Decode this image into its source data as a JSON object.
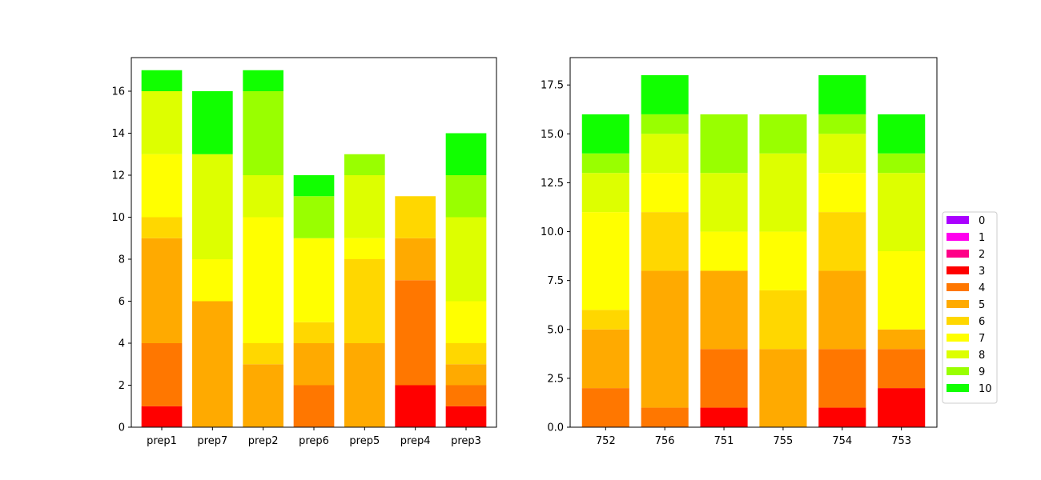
{
  "legend": {
    "placement": "right",
    "entries": [
      {
        "label": "0",
        "color": "#aa00ff"
      },
      {
        "label": "1",
        "color": "#ff00ee"
      },
      {
        "label": "2",
        "color": "#ff0088"
      },
      {
        "label": "3",
        "color": "#ff0000"
      },
      {
        "label": "4",
        "color": "#ff7700"
      },
      {
        "label": "5",
        "color": "#ffaa00"
      },
      {
        "label": "6",
        "color": "#ffd700"
      },
      {
        "label": "7",
        "color": "#ffff00"
      },
      {
        "label": "8",
        "color": "#ddff00"
      },
      {
        "label": "9",
        "color": "#99ff00"
      },
      {
        "label": "10",
        "color": "#11ff00"
      }
    ]
  },
  "chart_data": [
    {
      "type": "bar",
      "stacked": true,
      "categories": [
        "prep1",
        "prep7",
        "prep2",
        "prep6",
        "prep5",
        "prep4",
        "prep3"
      ],
      "ylim": [
        0,
        17.6
      ],
      "yticks": [
        0,
        2,
        4,
        6,
        8,
        10,
        12,
        14,
        16
      ],
      "ytick_labels": [
        "0",
        "2",
        "4",
        "6",
        "8",
        "10",
        "12",
        "14",
        "16"
      ],
      "series": [
        {
          "name": "0",
          "values": [
            0,
            0,
            0,
            0,
            0,
            0,
            0
          ]
        },
        {
          "name": "1",
          "values": [
            0,
            0,
            0,
            0,
            0,
            0,
            0
          ]
        },
        {
          "name": "2",
          "values": [
            0,
            0,
            0,
            0,
            0,
            0,
            0
          ]
        },
        {
          "name": "3",
          "values": [
            1,
            0,
            0,
            0,
            0,
            2,
            1
          ]
        },
        {
          "name": "4",
          "values": [
            3,
            0,
            0,
            2,
            0,
            5,
            1
          ]
        },
        {
          "name": "5",
          "values": [
            5,
            6,
            3,
            2,
            4,
            2,
            1
          ]
        },
        {
          "name": "6",
          "values": [
            1,
            0,
            1,
            1,
            4,
            2,
            1
          ]
        },
        {
          "name": "7",
          "values": [
            3,
            2,
            6,
            4,
            1,
            0,
            2
          ]
        },
        {
          "name": "8",
          "values": [
            3,
            5,
            2,
            0,
            3,
            0,
            4
          ]
        },
        {
          "name": "9",
          "values": [
            0,
            0,
            4,
            2,
            1,
            0,
            2
          ]
        },
        {
          "name": "10",
          "values": [
            1,
            3,
            1,
            1,
            0,
            0,
            2
          ]
        }
      ]
    },
    {
      "type": "bar",
      "stacked": true,
      "categories": [
        "752",
        "756",
        "751",
        "755",
        "754",
        "753"
      ],
      "ylim": [
        0,
        18.9
      ],
      "yticks": [
        0,
        2.5,
        5,
        7.5,
        10,
        12.5,
        15,
        17.5
      ],
      "ytick_labels": [
        "0.0",
        "2.5",
        "5.0",
        "7.5",
        "10.0",
        "12.5",
        "15.0",
        "17.5"
      ],
      "series": [
        {
          "name": "0",
          "values": [
            0,
            0,
            0,
            0,
            0,
            0
          ]
        },
        {
          "name": "1",
          "values": [
            0,
            0,
            0,
            0,
            0,
            0
          ]
        },
        {
          "name": "2",
          "values": [
            0,
            0,
            0,
            0,
            0,
            0
          ]
        },
        {
          "name": "3",
          "values": [
            0,
            0,
            1,
            0,
            1,
            2
          ]
        },
        {
          "name": "4",
          "values": [
            2,
            1,
            3,
            0,
            3,
            2
          ]
        },
        {
          "name": "5",
          "values": [
            3,
            7,
            4,
            4,
            4,
            1
          ]
        },
        {
          "name": "6",
          "values": [
            1,
            3,
            0,
            3,
            3,
            0
          ]
        },
        {
          "name": "7",
          "values": [
            5,
            2,
            2,
            3,
            2,
            4
          ]
        },
        {
          "name": "8",
          "values": [
            2,
            2,
            3,
            4,
            2,
            4
          ]
        },
        {
          "name": "9",
          "values": [
            1,
            1,
            3,
            2,
            1,
            1
          ]
        },
        {
          "name": "10",
          "values": [
            2,
            2,
            0,
            0,
            2,
            2
          ]
        }
      ]
    }
  ]
}
